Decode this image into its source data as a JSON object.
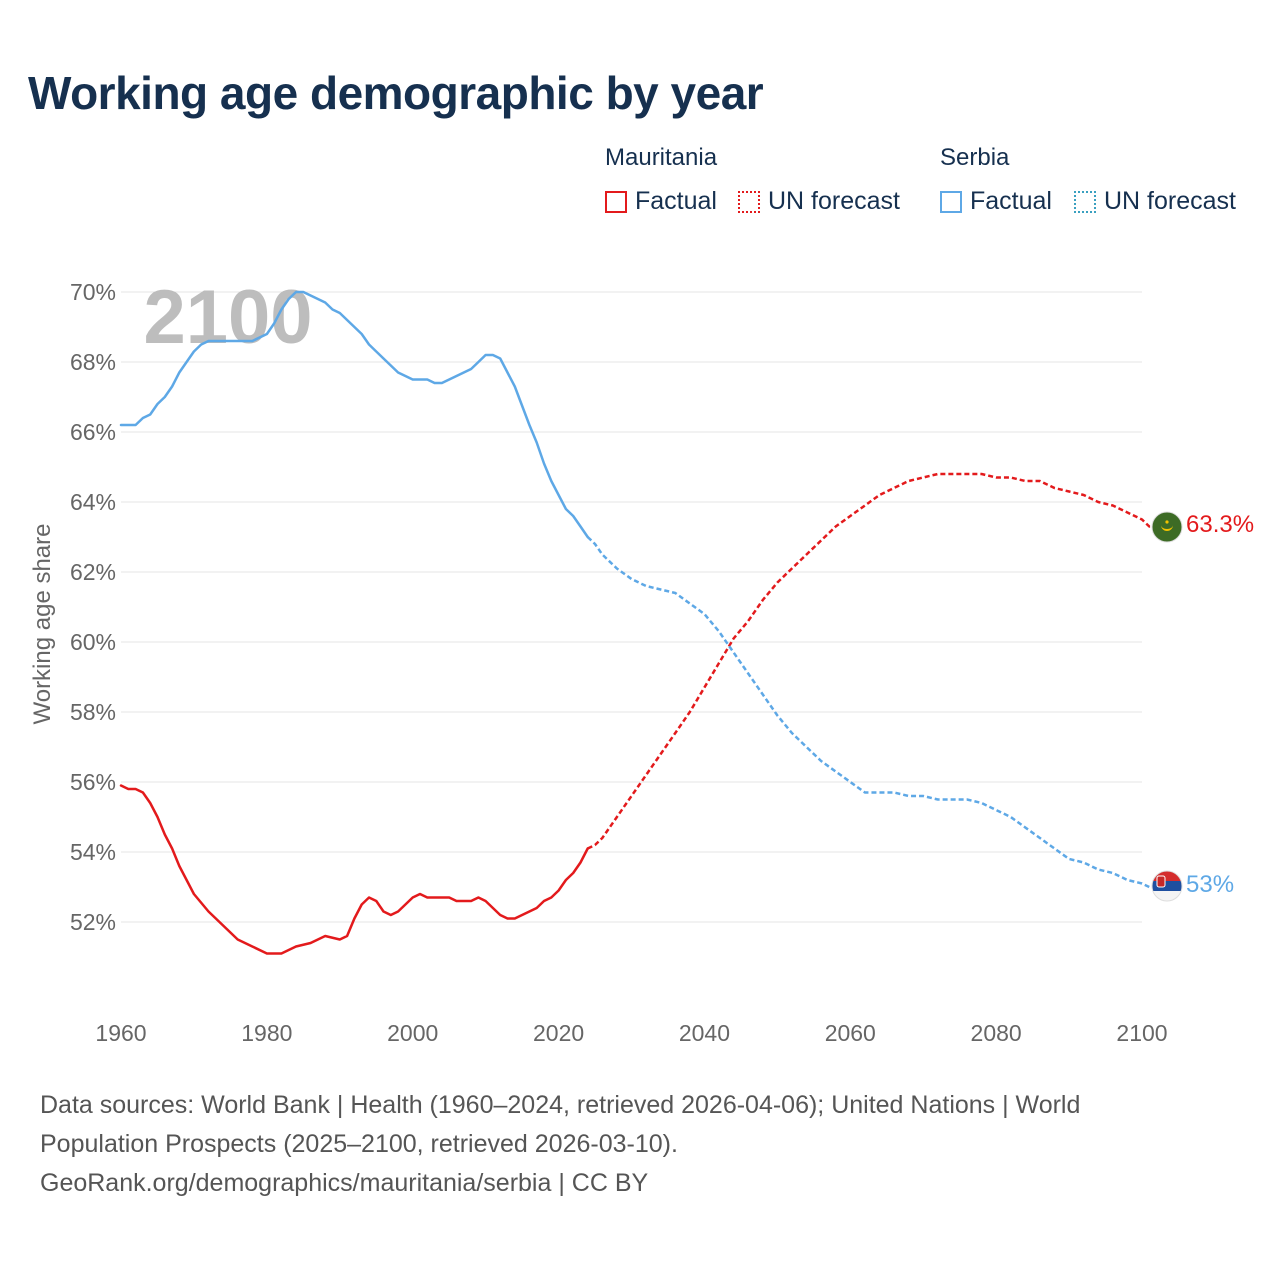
{
  "title": "Working age demographic by year",
  "year_watermark": "2100",
  "legend": {
    "groups": [
      {
        "name": "Mauritania",
        "color": "#e31a1c",
        "factual_label": "Factual",
        "forecast_label": "UN forecast"
      },
      {
        "name": "Serbia",
        "color": "#5ea8e6",
        "factual_label": "Factual",
        "forecast_label": "UN forecast"
      }
    ]
  },
  "source": {
    "line1": "Data sources: World Bank | Health (1960–2024, retrieved 2026-04-06); United Nations | World",
    "line2": "Population Prospects (2025–2100, retrieved 2026-03-10).",
    "line3": "GeoRank.org/demographics/mauritania/serbia | CC BY"
  },
  "chart_data": {
    "type": "line",
    "title": "Working age demographic by year",
    "xlabel": "",
    "ylabel": "Working age share",
    "xlim": [
      1960,
      2100
    ],
    "ylim": [
      50,
      70.5
    ],
    "x_ticks": [
      1960,
      1980,
      2000,
      2020,
      2040,
      2060,
      2080,
      2100
    ],
    "y_ticks": [
      52,
      54,
      56,
      58,
      60,
      62,
      64,
      66,
      68,
      70
    ],
    "y_tick_labels": [
      "52%",
      "54%",
      "56%",
      "58%",
      "60%",
      "62%",
      "64%",
      "66%",
      "68%",
      "70%"
    ],
    "x_tick_labels": [
      "1960",
      "1980",
      "2000",
      "2020",
      "2040",
      "2060",
      "2080",
      "2100"
    ],
    "forecast_start": 2024,
    "grid": true,
    "series": [
      {
        "name": "Mauritania",
        "color": "#e31a1c",
        "end_label": "63.3%",
        "points": [
          [
            1960,
            55.9
          ],
          [
            1961,
            55.8
          ],
          [
            1962,
            55.8
          ],
          [
            1963,
            55.7
          ],
          [
            1964,
            55.4
          ],
          [
            1965,
            55.0
          ],
          [
            1966,
            54.5
          ],
          [
            1967,
            54.1
          ],
          [
            1968,
            53.6
          ],
          [
            1969,
            53.2
          ],
          [
            1970,
            52.8
          ],
          [
            1972,
            52.3
          ],
          [
            1974,
            51.9
          ],
          [
            1976,
            51.5
          ],
          [
            1978,
            51.3
          ],
          [
            1980,
            51.1
          ],
          [
            1982,
            51.1
          ],
          [
            1984,
            51.3
          ],
          [
            1986,
            51.4
          ],
          [
            1988,
            51.6
          ],
          [
            1990,
            51.5
          ],
          [
            1991,
            51.6
          ],
          [
            1992,
            52.1
          ],
          [
            1993,
            52.5
          ],
          [
            1994,
            52.7
          ],
          [
            1995,
            52.6
          ],
          [
            1996,
            52.3
          ],
          [
            1997,
            52.2
          ],
          [
            1998,
            52.3
          ],
          [
            2000,
            52.7
          ],
          [
            2001,
            52.8
          ],
          [
            2002,
            52.7
          ],
          [
            2004,
            52.7
          ],
          [
            2005,
            52.7
          ],
          [
            2006,
            52.6
          ],
          [
            2008,
            52.6
          ],
          [
            2009,
            52.7
          ],
          [
            2010,
            52.6
          ],
          [
            2012,
            52.2
          ],
          [
            2013,
            52.1
          ],
          [
            2014,
            52.1
          ],
          [
            2016,
            52.3
          ],
          [
            2017,
            52.4
          ],
          [
            2018,
            52.6
          ],
          [
            2019,
            52.7
          ],
          [
            2020,
            52.9
          ],
          [
            2021,
            53.2
          ],
          [
            2022,
            53.4
          ],
          [
            2023,
            53.7
          ],
          [
            2024,
            54.1
          ],
          [
            2025,
            54.2
          ],
          [
            2026,
            54.4
          ],
          [
            2028,
            55.0
          ],
          [
            2030,
            55.6
          ],
          [
            2032,
            56.2
          ],
          [
            2034,
            56.8
          ],
          [
            2036,
            57.4
          ],
          [
            2038,
            58.0
          ],
          [
            2040,
            58.7
          ],
          [
            2042,
            59.4
          ],
          [
            2044,
            60.1
          ],
          [
            2046,
            60.6
          ],
          [
            2048,
            61.2
          ],
          [
            2050,
            61.7
          ],
          [
            2052,
            62.1
          ],
          [
            2054,
            62.5
          ],
          [
            2056,
            62.9
          ],
          [
            2058,
            63.3
          ],
          [
            2060,
            63.6
          ],
          [
            2062,
            63.9
          ],
          [
            2064,
            64.2
          ],
          [
            2066,
            64.4
          ],
          [
            2068,
            64.6
          ],
          [
            2070,
            64.7
          ],
          [
            2072,
            64.8
          ],
          [
            2074,
            64.8
          ],
          [
            2076,
            64.8
          ],
          [
            2078,
            64.8
          ],
          [
            2080,
            64.7
          ],
          [
            2082,
            64.7
          ],
          [
            2084,
            64.6
          ],
          [
            2086,
            64.6
          ],
          [
            2088,
            64.4
          ],
          [
            2090,
            64.3
          ],
          [
            2092,
            64.2
          ],
          [
            2094,
            64.0
          ],
          [
            2096,
            63.9
          ],
          [
            2098,
            63.7
          ],
          [
            2100,
            63.5
          ],
          [
            2101,
            63.3
          ],
          [
            2102,
            63.3
          ]
        ]
      },
      {
        "name": "Serbia",
        "color": "#5ea8e6",
        "end_label": "53%",
        "points": [
          [
            1960,
            66.2
          ],
          [
            1962,
            66.2
          ],
          [
            1963,
            66.4
          ],
          [
            1964,
            66.5
          ],
          [
            1965,
            66.8
          ],
          [
            1966,
            67.0
          ],
          [
            1967,
            67.3
          ],
          [
            1968,
            67.7
          ],
          [
            1969,
            68.0
          ],
          [
            1970,
            68.3
          ],
          [
            1971,
            68.5
          ],
          [
            1972,
            68.6
          ],
          [
            1974,
            68.6
          ],
          [
            1976,
            68.6
          ],
          [
            1978,
            68.6
          ],
          [
            1980,
            68.8
          ],
          [
            1981,
            69.1
          ],
          [
            1982,
            69.5
          ],
          [
            1983,
            69.8
          ],
          [
            1984,
            70.0
          ],
          [
            1985,
            70.0
          ],
          [
            1986,
            69.9
          ],
          [
            1988,
            69.7
          ],
          [
            1989,
            69.5
          ],
          [
            1990,
            69.4
          ],
          [
            1992,
            69.0
          ],
          [
            1993,
            68.8
          ],
          [
            1994,
            68.5
          ],
          [
            1996,
            68.1
          ],
          [
            1998,
            67.7
          ],
          [
            2000,
            67.5
          ],
          [
            2002,
            67.5
          ],
          [
            2003,
            67.4
          ],
          [
            2004,
            67.4
          ],
          [
            2006,
            67.6
          ],
          [
            2008,
            67.8
          ],
          [
            2009,
            68.0
          ],
          [
            2010,
            68.2
          ],
          [
            2011,
            68.2
          ],
          [
            2012,
            68.1
          ],
          [
            2014,
            67.3
          ],
          [
            2016,
            66.2
          ],
          [
            2017,
            65.7
          ],
          [
            2018,
            65.1
          ],
          [
            2019,
            64.6
          ],
          [
            2020,
            64.2
          ],
          [
            2021,
            63.8
          ],
          [
            2022,
            63.6
          ],
          [
            2023,
            63.3
          ],
          [
            2024,
            63.0
          ],
          [
            2025,
            62.8
          ],
          [
            2026,
            62.5
          ],
          [
            2028,
            62.1
          ],
          [
            2030,
            61.8
          ],
          [
            2032,
            61.6
          ],
          [
            2034,
            61.5
          ],
          [
            2036,
            61.4
          ],
          [
            2038,
            61.1
          ],
          [
            2040,
            60.8
          ],
          [
            2042,
            60.3
          ],
          [
            2044,
            59.7
          ],
          [
            2046,
            59.1
          ],
          [
            2048,
            58.5
          ],
          [
            2050,
            57.9
          ],
          [
            2052,
            57.4
          ],
          [
            2054,
            57.0
          ],
          [
            2056,
            56.6
          ],
          [
            2058,
            56.3
          ],
          [
            2060,
            56.0
          ],
          [
            2062,
            55.7
          ],
          [
            2064,
            55.7
          ],
          [
            2066,
            55.7
          ],
          [
            2068,
            55.6
          ],
          [
            2070,
            55.6
          ],
          [
            2072,
            55.5
          ],
          [
            2074,
            55.5
          ],
          [
            2076,
            55.5
          ],
          [
            2078,
            55.4
          ],
          [
            2080,
            55.2
          ],
          [
            2082,
            55.0
          ],
          [
            2084,
            54.7
          ],
          [
            2086,
            54.4
          ],
          [
            2088,
            54.1
          ],
          [
            2090,
            53.8
          ],
          [
            2092,
            53.7
          ],
          [
            2094,
            53.5
          ],
          [
            2096,
            53.4
          ],
          [
            2098,
            53.2
          ],
          [
            2100,
            53.1
          ],
          [
            2101,
            53.0
          ],
          [
            2102,
            53.0
          ]
        ]
      }
    ]
  }
}
